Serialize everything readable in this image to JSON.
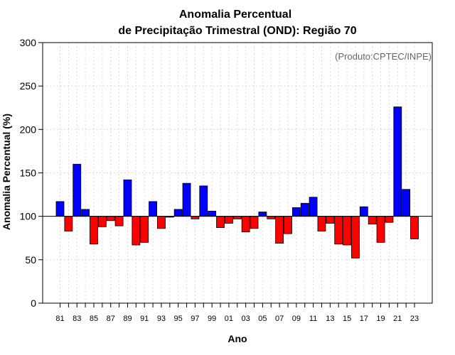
{
  "chart_data": {
    "type": "bar",
    "title": "Anomalia Percentual",
    "subtitle": "de Precipitação Trimestral (OND): Região 70",
    "xlabel": "Ano",
    "ylabel": "Anomalia Percentual (%)",
    "credit": "(Produto:CPTEC/INPE)",
    "ylim": [
      0,
      300
    ],
    "yticks": [
      0,
      50,
      100,
      150,
      200,
      250,
      300
    ],
    "baseline": 100,
    "grid": true,
    "colors": {
      "above": "#0000ff",
      "below": "#ff0000"
    },
    "categories": [
      "81",
      "82",
      "83",
      "84",
      "85",
      "86",
      "87",
      "88",
      "89",
      "90",
      "91",
      "92",
      "93",
      "94",
      "95",
      "96",
      "97",
      "98",
      "99",
      "00",
      "01",
      "02",
      "03",
      "04",
      "05",
      "06",
      "07",
      "08",
      "09",
      "10",
      "11",
      "12",
      "13",
      "14",
      "15",
      "16",
      "17",
      "18",
      "19",
      "20",
      "21",
      "22",
      "23"
    ],
    "xtick_labels": [
      "81",
      "83",
      "85",
      "87",
      "89",
      "91",
      "93",
      "95",
      "97",
      "99",
      "01",
      "03",
      "05",
      "07",
      "09",
      "11",
      "13",
      "15",
      "17",
      "19",
      "21",
      "23"
    ],
    "values": [
      117,
      83,
      160,
      108,
      68,
      88,
      95,
      89,
      142,
      67,
      70,
      117,
      86,
      99,
      108,
      138,
      97,
      135,
      106,
      87,
      92,
      97,
      82,
      86,
      105,
      97,
      69,
      80,
      110,
      115,
      122,
      83,
      92,
      68,
      67,
      52,
      111,
      91,
      70,
      93,
      226,
      131,
      74
    ]
  }
}
